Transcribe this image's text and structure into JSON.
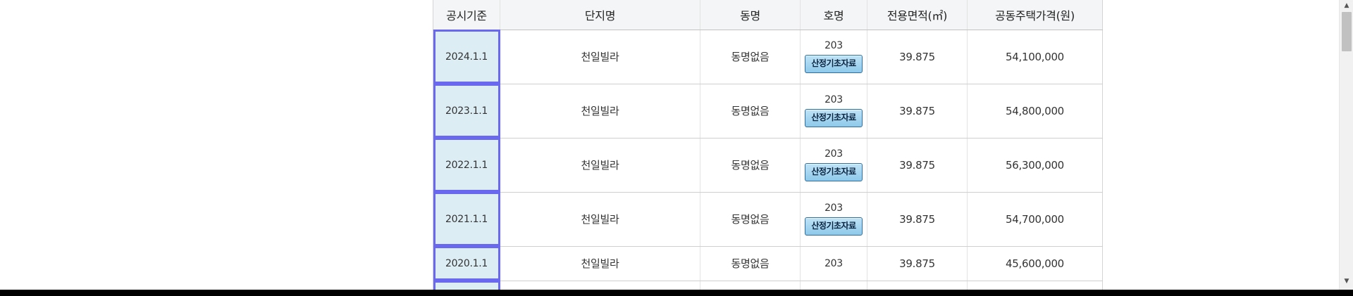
{
  "table": {
    "headers": [
      "공시기준",
      "단지명",
      "동명",
      "호명",
      "전용면적(㎡)",
      "공동주택가격(원)"
    ],
    "button_label": "산정기초자료",
    "rows": [
      {
        "date": "2024.1.1",
        "complex": "천일빌라",
        "dong": "동명없음",
        "ho": "203",
        "area": "39.875",
        "price": "54,100,000"
      },
      {
        "date": "2023.1.1",
        "complex": "천일빌라",
        "dong": "동명없음",
        "ho": "203",
        "area": "39.875",
        "price": "54,800,000"
      },
      {
        "date": "2022.1.1",
        "complex": "천일빌라",
        "dong": "동명없음",
        "ho": "203",
        "area": "39.875",
        "price": "56,300,000"
      },
      {
        "date": "2021.1.1",
        "complex": "천일빌라",
        "dong": "동명없음",
        "ho": "203",
        "area": "39.875",
        "price": "54,700,000"
      },
      {
        "date": "2020.1.1",
        "complex": "천일빌라",
        "dong": "동명없음",
        "ho": "203",
        "area": "39.875",
        "price": "45,600,000"
      }
    ]
  },
  "scrollbar": {
    "up_arrow": "▲",
    "down_arrow": "▼"
  },
  "colors": {
    "date_highlight": "#dcedf4",
    "selection_outline": "#6b68f0",
    "button_fill": "#8ec9ea"
  }
}
